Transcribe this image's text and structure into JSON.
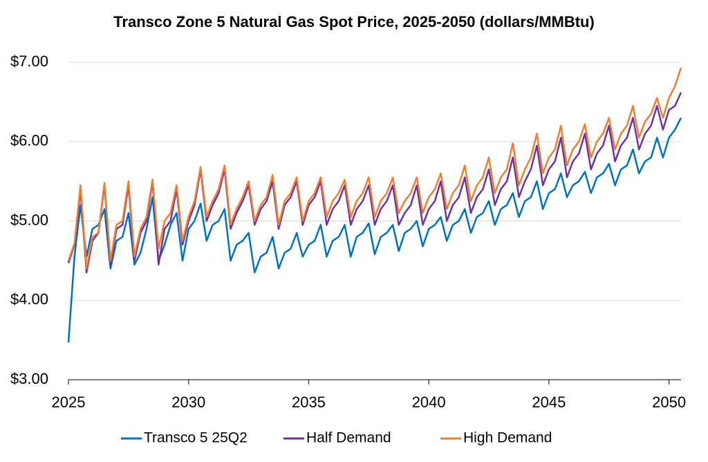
{
  "chart_data": {
    "type": "line",
    "title": "Transco Zone 5 Natural Gas Spot Price, 2025-2050 (dollars/MMBtu)",
    "x": [
      2025,
      2025.25,
      2025.5,
      2025.75,
      2026,
      2026.25,
      2026.5,
      2026.75,
      2027,
      2027.25,
      2027.5,
      2027.75,
      2028,
      2028.25,
      2028.5,
      2028.75,
      2029,
      2029.25,
      2029.5,
      2029.75,
      2030,
      2030.25,
      2030.5,
      2030.75,
      2031,
      2031.25,
      2031.5,
      2031.75,
      2032,
      2032.25,
      2032.5,
      2032.75,
      2033,
      2033.25,
      2033.5,
      2033.75,
      2034,
      2034.25,
      2034.5,
      2034.75,
      2035,
      2035.25,
      2035.5,
      2035.75,
      2036,
      2036.25,
      2036.5,
      2036.75,
      2037,
      2037.25,
      2037.5,
      2037.75,
      2038,
      2038.25,
      2038.5,
      2038.75,
      2039,
      2039.25,
      2039.5,
      2039.75,
      2040,
      2040.25,
      2040.5,
      2040.75,
      2041,
      2041.25,
      2041.5,
      2041.75,
      2042,
      2042.25,
      2042.5,
      2042.75,
      2043,
      2043.25,
      2043.5,
      2043.75,
      2044,
      2044.25,
      2044.5,
      2044.75,
      2045,
      2045.25,
      2045.5,
      2045.75,
      2046,
      2046.25,
      2046.5,
      2046.75,
      2047,
      2047.25,
      2047.5,
      2047.75,
      2048,
      2048.25,
      2048.5,
      2048.75,
      2049,
      2049.25,
      2049.5,
      2049.75,
      2050,
      2050.25,
      2050.5
    ],
    "series": [
      {
        "name": "Transco 5 25Q2",
        "color": "#0070c0",
        "values": [
          3.47,
          4.55,
          5.2,
          4.55,
          4.9,
          4.95,
          5.15,
          4.4,
          4.75,
          4.8,
          5.1,
          4.45,
          4.6,
          4.9,
          5.3,
          4.5,
          4.7,
          4.95,
          5.1,
          4.5,
          4.9,
          5.0,
          5.22,
          4.75,
          4.95,
          5.0,
          5.15,
          4.5,
          4.7,
          4.75,
          4.85,
          4.35,
          4.55,
          4.6,
          4.8,
          4.4,
          4.6,
          4.65,
          4.85,
          4.55,
          4.7,
          4.75,
          4.95,
          4.55,
          4.75,
          4.8,
          4.95,
          4.55,
          4.8,
          4.85,
          4.97,
          4.58,
          4.8,
          4.85,
          4.95,
          4.62,
          4.85,
          4.9,
          5.0,
          4.68,
          4.9,
          4.95,
          5.05,
          4.75,
          4.95,
          5.0,
          5.15,
          4.85,
          5.05,
          5.1,
          5.25,
          4.95,
          5.15,
          5.2,
          5.35,
          5.05,
          5.25,
          5.3,
          5.5,
          5.15,
          5.35,
          5.4,
          5.6,
          5.3,
          5.45,
          5.5,
          5.62,
          5.35,
          5.55,
          5.6,
          5.72,
          5.45,
          5.65,
          5.7,
          5.9,
          5.6,
          5.75,
          5.8,
          6.05,
          5.8,
          6.05,
          6.15,
          6.3
        ]
      },
      {
        "name": "Half Demand",
        "color": "#7030a0",
        "values": [
          4.47,
          4.7,
          5.4,
          4.35,
          4.75,
          4.85,
          5.45,
          4.45,
          4.9,
          4.95,
          5.45,
          4.5,
          4.85,
          5.0,
          5.5,
          4.45,
          4.9,
          5.0,
          5.4,
          4.7,
          5.0,
          5.2,
          5.65,
          5.0,
          5.2,
          5.35,
          5.65,
          4.9,
          5.1,
          5.25,
          5.45,
          4.95,
          5.15,
          5.25,
          5.5,
          4.9,
          5.2,
          5.3,
          5.5,
          4.95,
          5.2,
          5.3,
          5.5,
          4.95,
          5.15,
          5.25,
          5.45,
          4.95,
          5.15,
          5.25,
          5.45,
          4.95,
          5.15,
          5.25,
          5.45,
          4.95,
          5.1,
          5.2,
          5.45,
          4.95,
          5.15,
          5.25,
          5.5,
          5.0,
          5.2,
          5.3,
          5.55,
          5.1,
          5.3,
          5.4,
          5.65,
          5.2,
          5.4,
          5.5,
          5.8,
          5.3,
          5.5,
          5.65,
          5.95,
          5.45,
          5.65,
          5.75,
          6.05,
          5.55,
          5.75,
          5.85,
          6.1,
          5.65,
          5.85,
          5.95,
          6.2,
          5.75,
          5.95,
          6.05,
          6.3,
          5.9,
          6.1,
          6.2,
          6.45,
          6.15,
          6.4,
          6.45,
          6.62
        ]
      },
      {
        "name": "High Demand",
        "color": "#ed7d31",
        "values": [
          4.5,
          4.72,
          5.45,
          4.4,
          4.8,
          4.85,
          5.48,
          4.5,
          4.95,
          5.0,
          5.5,
          4.55,
          4.9,
          5.05,
          5.52,
          4.65,
          5.0,
          5.1,
          5.45,
          4.75,
          5.05,
          5.25,
          5.68,
          5.05,
          5.25,
          5.4,
          5.7,
          4.95,
          5.15,
          5.3,
          5.5,
          5.0,
          5.2,
          5.3,
          5.58,
          4.95,
          5.25,
          5.35,
          5.55,
          5.0,
          5.25,
          5.35,
          5.55,
          5.05,
          5.25,
          5.35,
          5.52,
          5.05,
          5.25,
          5.35,
          5.55,
          5.05,
          5.25,
          5.35,
          5.55,
          5.1,
          5.25,
          5.35,
          5.55,
          5.1,
          5.3,
          5.4,
          5.6,
          5.15,
          5.35,
          5.45,
          5.7,
          5.25,
          5.45,
          5.55,
          5.8,
          5.35,
          5.55,
          5.65,
          5.98,
          5.45,
          5.65,
          5.8,
          6.1,
          5.6,
          5.8,
          5.9,
          6.2,
          5.7,
          5.9,
          6.0,
          6.22,
          5.8,
          6.0,
          6.1,
          6.3,
          5.9,
          6.1,
          6.2,
          6.45,
          6.05,
          6.25,
          6.35,
          6.55,
          6.3,
          6.55,
          6.7,
          6.93
        ]
      }
    ],
    "xlim": [
      2025,
      2050.5
    ],
    "xticks": [
      2025,
      2030,
      2035,
      2040,
      2045,
      2050
    ],
    "ylim": [
      3,
      7
    ],
    "yticks": [
      {
        "value": 3,
        "label": "$3.00"
      },
      {
        "value": 4,
        "label": "$4.00"
      },
      {
        "value": 5,
        "label": "$5.00"
      },
      {
        "value": 6,
        "label": "$6.00"
      },
      {
        "value": 7,
        "label": "$7.00"
      }
    ],
    "grid": true,
    "legend": "bottom"
  }
}
